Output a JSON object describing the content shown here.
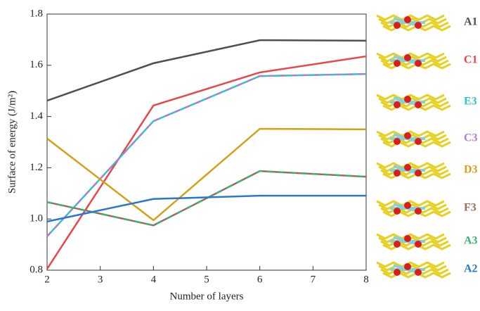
{
  "chart_data": {
    "type": "line",
    "x_label": "Number of layers",
    "y_label": "Surface of energy (J/m²)",
    "x": [
      2,
      4,
      6,
      8
    ],
    "xlim": [
      2,
      8
    ],
    "xticks": [
      2,
      3,
      4,
      5,
      6,
      7,
      8
    ],
    "ylim": [
      0.8,
      1.8
    ],
    "yticks": [
      {
        "value": 0.8,
        "label": "0.8"
      },
      {
        "value": 1.0,
        "label": "1.0"
      },
      {
        "value": 1.2,
        "label": "1.2"
      },
      {
        "value": 1.4,
        "label": "1.4"
      },
      {
        "value": 1.6,
        "label": "1.6"
      },
      {
        "value": 1.8,
        "label": "1.8"
      }
    ],
    "series": [
      {
        "name": "A1",
        "color": "#505050",
        "values": [
          1.462,
          1.608,
          1.698,
          1.696
        ]
      },
      {
        "name": "C1",
        "color": "#e8474a",
        "values": [
          0.805,
          1.443,
          1.572,
          1.635
        ]
      },
      {
        "name": "E3",
        "color": "#2ec4c4",
        "values": [
          0.932,
          1.382,
          1.558,
          1.566
        ]
      },
      {
        "name": "C3",
        "color": "#b07cd8",
        "values": [
          0.932,
          1.382,
          1.558,
          1.566
        ],
        "dashed": true
      },
      {
        "name": "D3",
        "color": "#d4a017",
        "values": [
          1.314,
          0.995,
          1.352,
          1.35
        ]
      },
      {
        "name": "F3",
        "color": "#9b6a5f",
        "values": [
          1.066,
          0.975,
          1.187,
          1.165
        ]
      },
      {
        "name": "A3",
        "color": "#3cb371",
        "values": [
          1.066,
          0.975,
          1.187,
          1.165
        ],
        "dashed": true
      },
      {
        "name": "A2",
        "color": "#2878d0",
        "values": [
          0.99,
          1.078,
          1.091,
          1.091
        ]
      }
    ]
  }
}
